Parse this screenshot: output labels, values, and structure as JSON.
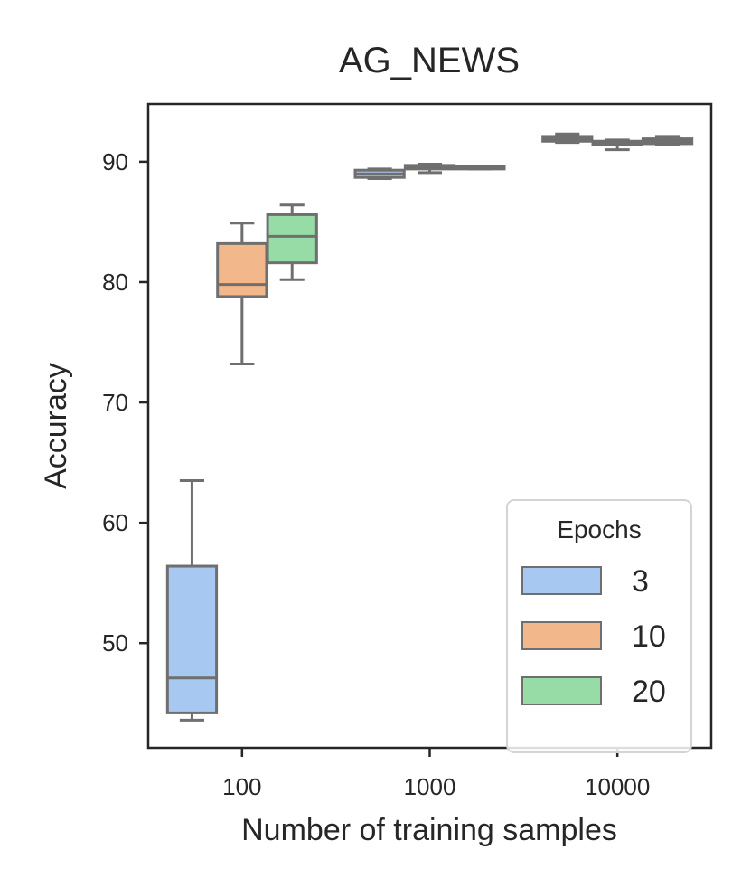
{
  "chart_data": {
    "type": "box",
    "title": "AG_NEWS",
    "xlabel": "Number of training samples",
    "ylabel": "Accuracy",
    "categories": [
      "100",
      "1000",
      "10000"
    ],
    "ylim": [
      41.3,
      94.8
    ],
    "yticks": [
      50,
      60,
      70,
      80,
      90
    ],
    "grid": false,
    "legend": {
      "title": "Epochs",
      "position": "lower-right"
    },
    "series": [
      {
        "name": "3",
        "color": "#a7c8f0",
        "boxes": [
          {
            "category": "100",
            "whisker_low": 43.6,
            "q1": 44.2,
            "median": 47.1,
            "q3": 56.4,
            "whisker_high": 63.5
          },
          {
            "category": "1000",
            "whisker_low": 88.6,
            "q1": 88.7,
            "median": 89.0,
            "q3": 89.3,
            "whisker_high": 89.4
          },
          {
            "category": "10000",
            "whisker_low": 91.6,
            "q1": 91.7,
            "median": 91.9,
            "q3": 92.1,
            "whisker_high": 92.3
          }
        ]
      },
      {
        "name": "10",
        "color": "#f2b88c",
        "boxes": [
          {
            "category": "100",
            "whisker_low": 73.2,
            "q1": 78.8,
            "median": 79.8,
            "q3": 83.2,
            "whisker_high": 84.9
          },
          {
            "category": "1000",
            "whisker_low": 89.1,
            "q1": 89.4,
            "median": 89.6,
            "q3": 89.7,
            "whisker_high": 89.8
          },
          {
            "category": "10000",
            "whisker_low": 91.0,
            "q1": 91.4,
            "median": 91.6,
            "q3": 91.7,
            "whisker_high": 91.8
          }
        ]
      },
      {
        "name": "20",
        "color": "#97dca7",
        "boxes": [
          {
            "category": "100",
            "whisker_low": 80.2,
            "q1": 81.6,
            "median": 83.8,
            "q3": 85.6,
            "whisker_high": 86.4
          },
          {
            "category": "1000",
            "whisker_low": 89.4,
            "q1": 89.4,
            "median": 89.5,
            "q3": 89.6,
            "whisker_high": 89.6
          },
          {
            "category": "10000",
            "whisker_low": 91.4,
            "q1": 91.5,
            "median": 91.7,
            "q3": 91.9,
            "whisker_high": 92.1
          }
        ]
      }
    ],
    "line_color": "#6f6f6f",
    "axis_color": "#262626"
  }
}
